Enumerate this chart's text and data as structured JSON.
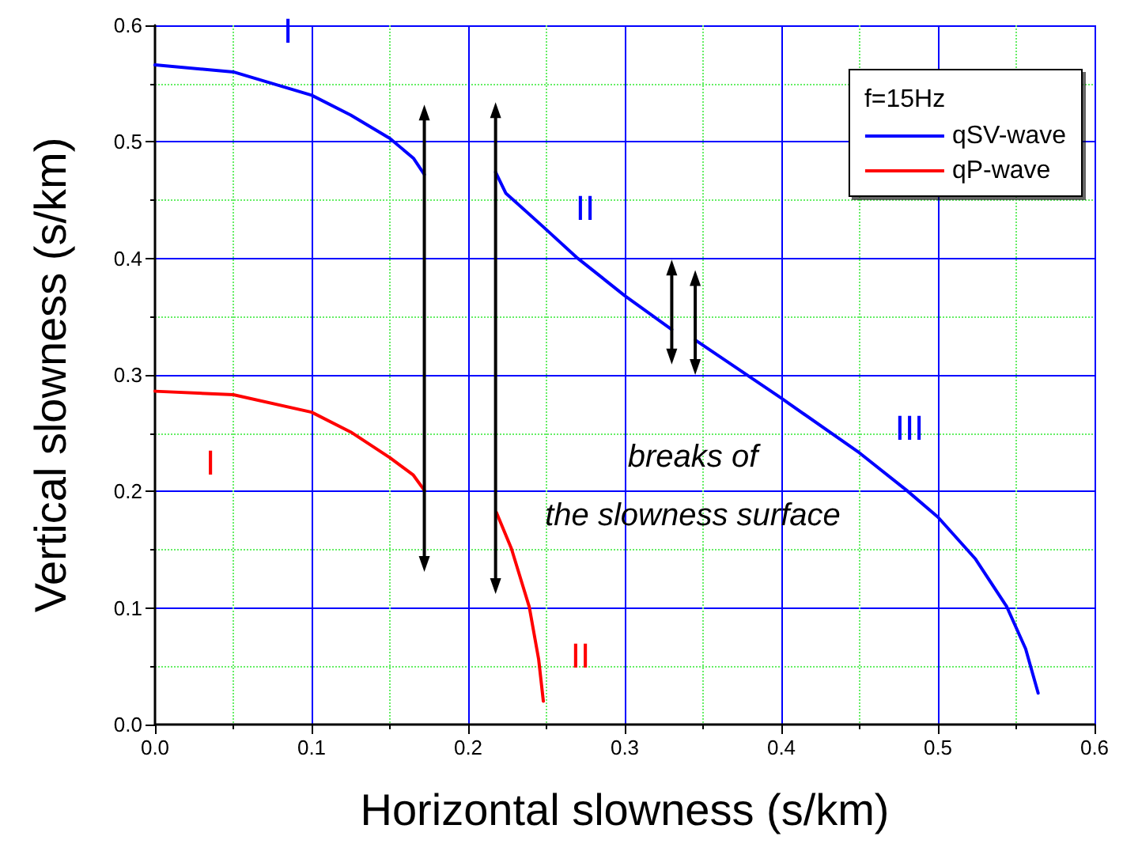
{
  "chart_data": {
    "type": "line",
    "xlabel": "Horizontal slowness (s/km)",
    "ylabel": "Vertical slowness (s/km)",
    "legend_title": "f=15Hz",
    "legend": "top right",
    "grid": true,
    "marker": "none",
    "line_style": "solid",
    "xlim": [
      0,
      0.6
    ],
    "xticks": [
      {
        "value": 0,
        "label": "0.0"
      },
      {
        "value": 0.05,
        "label": null
      },
      0.1,
      {
        "value": 0.15,
        "label": null
      },
      0.2,
      {
        "value": 0.25,
        "label": null
      },
      0.3,
      {
        "value": 0.35,
        "label": null
      },
      0.4,
      {
        "value": 0.45,
        "label": null
      },
      0.5,
      {
        "value": 0.55,
        "label": null
      },
      0.6
    ],
    "ylim": [
      0,
      0.6
    ],
    "yticks": [
      {
        "value": 0,
        "label": "0.0"
      },
      {
        "value": 0.05,
        "label": null
      },
      0.1,
      {
        "value": 0.15,
        "label": null
      },
      0.2,
      {
        "value": 0.25,
        "label": null
      },
      0.3,
      {
        "value": 0.35,
        "label": null
      },
      0.4,
      {
        "value": 0.45,
        "label": null
      },
      0.5,
      {
        "value": 0.55,
        "label": null
      },
      0.6
    ],
    "series": [
      {
        "name": "qSV-wave",
        "color": "#0000ff",
        "x": [
          0,
          0.05,
          0.1,
          0.125,
          0.15,
          0.165,
          0.172,
          0.195,
          0.2175,
          0.224,
          0.248,
          0.27,
          0.3,
          0.33,
          0.338,
          0.345,
          0.4,
          0.45,
          0.48,
          0.5,
          0.524,
          0.544,
          0.556,
          0.564
        ],
        "values": [
          0.566,
          0.56,
          0.54,
          0.523,
          0.503,
          0.486,
          0.472,
          null,
          0.474,
          0.456,
          0.427,
          0.4,
          0.368,
          0.339,
          null,
          0.33,
          0.28,
          0.233,
          0.201,
          0.178,
          0.142,
          0.101,
          0.065,
          0.027
        ]
      },
      {
        "name": "qP-wave",
        "color": "#ff0000",
        "x": [
          0,
          0.05,
          0.1,
          0.125,
          0.15,
          0.165,
          0.172,
          0.195,
          0.218,
          0.2276,
          0.239,
          0.245,
          0.248
        ],
        "values": [
          0.286,
          0.283,
          0.268,
          0.251,
          0.229,
          0.214,
          0.201,
          null,
          0.182,
          0.151,
          0.101,
          0.056,
          0.02
        ]
      }
    ],
    "annotations": [
      "I",
      "II",
      "III",
      "I",
      "II",
      "breaks of\nthe slowness surface"
    ]
  }
}
